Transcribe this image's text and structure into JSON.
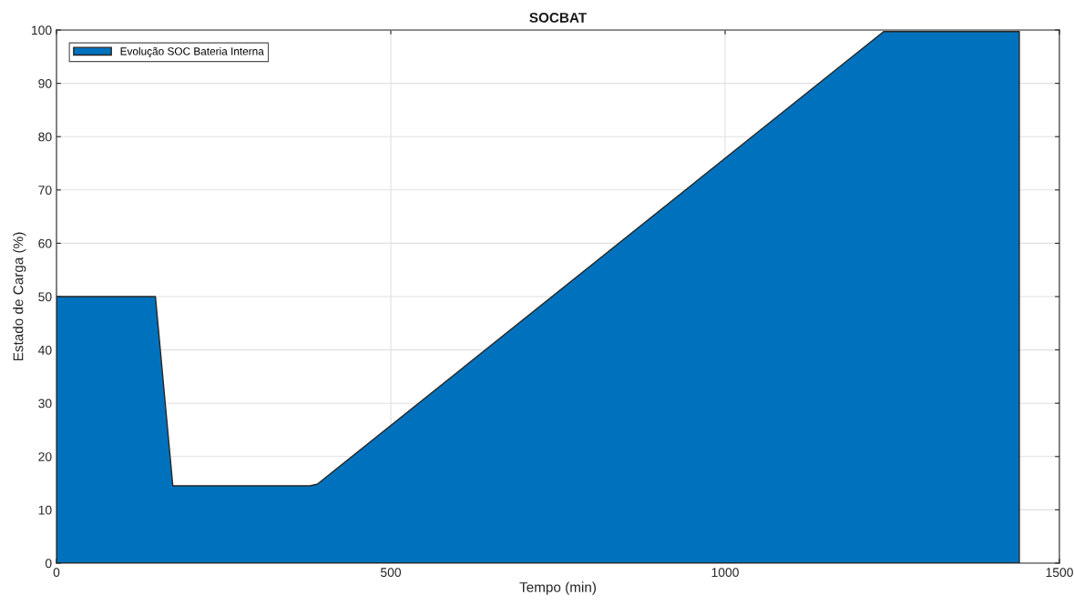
{
  "chart_data": {
    "type": "area",
    "title": "SOCBAT",
    "xlabel": "Tempo (min)",
    "ylabel": "Estado de Carga (%)",
    "series": [
      {
        "name": "Evolução SOC Bateria Interna",
        "color": "#0072bd",
        "x": [
          0,
          148,
          174,
          379,
          390,
          1237,
          1440
        ],
        "values": [
          50,
          50,
          14.5,
          14.5,
          14.8,
          99.7,
          99.7
        ]
      }
    ],
    "xlim": [
      0,
      1500
    ],
    "xticks": [
      0,
      500,
      1000,
      1500
    ],
    "ylim": [
      0,
      100
    ],
    "yticks": [
      0,
      10,
      20,
      30,
      40,
      50,
      60,
      70,
      80,
      90,
      100
    ],
    "grid": true,
    "legend": "top left"
  }
}
